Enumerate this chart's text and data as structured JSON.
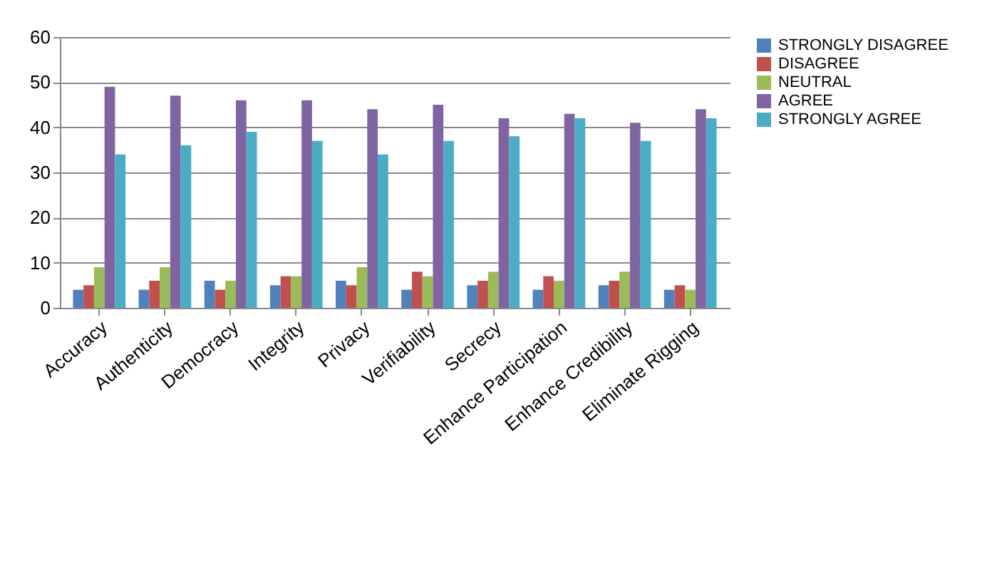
{
  "chart_data": {
    "type": "bar",
    "categories": [
      "Accuracy",
      "Authenticity",
      "Democracy",
      "Integrity",
      "Privacy",
      "Verifiability",
      "Secrecy",
      "Enhance Participation",
      "Enhance Credibility",
      "Eliminate Rigging"
    ],
    "series": [
      {
        "name": "STRONGLY DISAGREE",
        "color": "#4f81bd",
        "values": [
          4,
          4,
          6,
          5,
          6,
          4,
          5,
          4,
          5,
          4
        ]
      },
      {
        "name": "DISAGREE",
        "color": "#c0504d",
        "values": [
          5,
          6,
          4,
          7,
          5,
          8,
          6,
          7,
          6,
          5
        ]
      },
      {
        "name": "NEUTRAL",
        "color": "#9bbb59",
        "values": [
          9,
          9,
          6,
          7,
          9,
          7,
          8,
          6,
          8,
          4
        ]
      },
      {
        "name": "AGREE",
        "color": "#8064a2",
        "values": [
          49,
          47,
          46,
          46,
          44,
          45,
          42,
          43,
          41,
          44
        ]
      },
      {
        "name": "STRONGLY AGREE",
        "color": "#4bacc6",
        "values": [
          34,
          36,
          39,
          37,
          34,
          37,
          38,
          42,
          37,
          42
        ]
      }
    ],
    "ylim": [
      0,
      60
    ],
    "yticks": [
      0,
      10,
      20,
      30,
      40,
      50,
      60
    ],
    "grid": "y",
    "legend": "right"
  }
}
